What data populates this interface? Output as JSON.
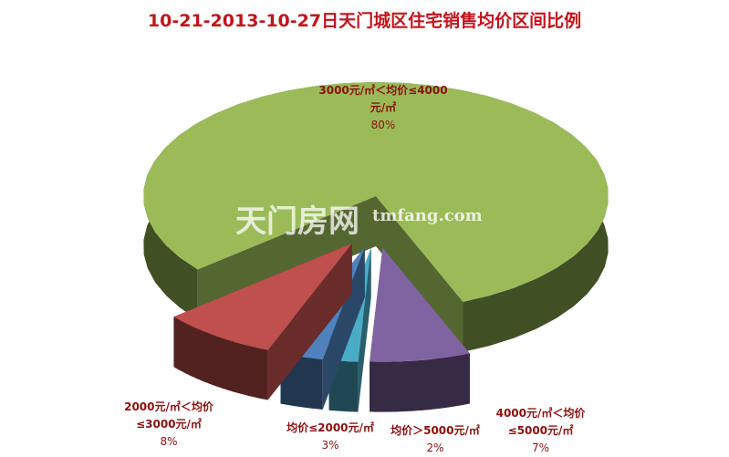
{
  "chart_data": {
    "type": "pie",
    "title": "10-21-2013-10-27日天门城区住宅销售均价区间比例",
    "three_d": true,
    "slices": [
      {
        "label": "3000元/㎡＜均价≤4000元/㎡",
        "value": 80,
        "pct": "80%",
        "color": "#9bbb59"
      },
      {
        "label": "4000元/㎡＜均价≤5000元/㎡",
        "value": 7,
        "pct": "7%",
        "color": "#8064a2"
      },
      {
        "label": "均价＞5000元/㎡",
        "value": 2,
        "pct": "2%",
        "color": "#4bacc6"
      },
      {
        "label": "均价≤2000元/㎡",
        "value": 3,
        "pct": "3%",
        "color": "#4f81bd"
      },
      {
        "label": "2000元/㎡＜均价≤3000元/㎡",
        "value": 8,
        "pct": "8%",
        "color": "#c0504d"
      }
    ]
  },
  "watermark": {
    "cn": "天门房网",
    "en": "tmfang.com"
  }
}
